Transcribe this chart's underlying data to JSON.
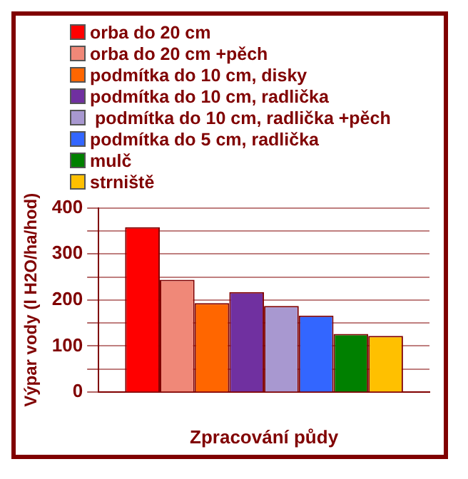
{
  "chart_data": {
    "type": "bar",
    "xlabel": "Zpracování půdy",
    "ylabel": "Výpar vody (l H2O/ha/hod)",
    "categories": [
      null
    ],
    "series": [
      {
        "name": "orba do 20 cm",
        "color": "#ff0000",
        "values": [
          358
        ]
      },
      {
        "name": "orba do 20 cm +pěch",
        "color": "#f08878",
        "values": [
          244
        ]
      },
      {
        "name": "podmítka do 10 cm, disky",
        "color": "#ff6600",
        "values": [
          193
        ]
      },
      {
        "name": "podmítka do 10 cm, radlička",
        "color": "#7030a0",
        "values": [
          217
        ]
      },
      {
        "name": " podmítka do 10 cm, radlička +pěch",
        "color": "#a898d0",
        "values": [
          187
        ]
      },
      {
        "name": "podmítka do 5 cm, radlička",
        "color": "#3366ff",
        "values": [
          166
        ]
      },
      {
        "name": "mulč",
        "color": "#008000",
        "values": [
          126
        ]
      },
      {
        "name": "strniště",
        "color": "#ffc000",
        "values": [
          122
        ]
      }
    ],
    "ylim": [
      0,
      400
    ],
    "yticks": [
      0,
      {
        "value": 50,
        "label": null
      },
      100,
      {
        "value": 150,
        "label": null
      },
      200,
      {
        "value": 250,
        "label": null
      },
      300,
      {
        "value": 350,
        "label": null
      },
      400
    ],
    "grid": "y",
    "legend": "top"
  }
}
